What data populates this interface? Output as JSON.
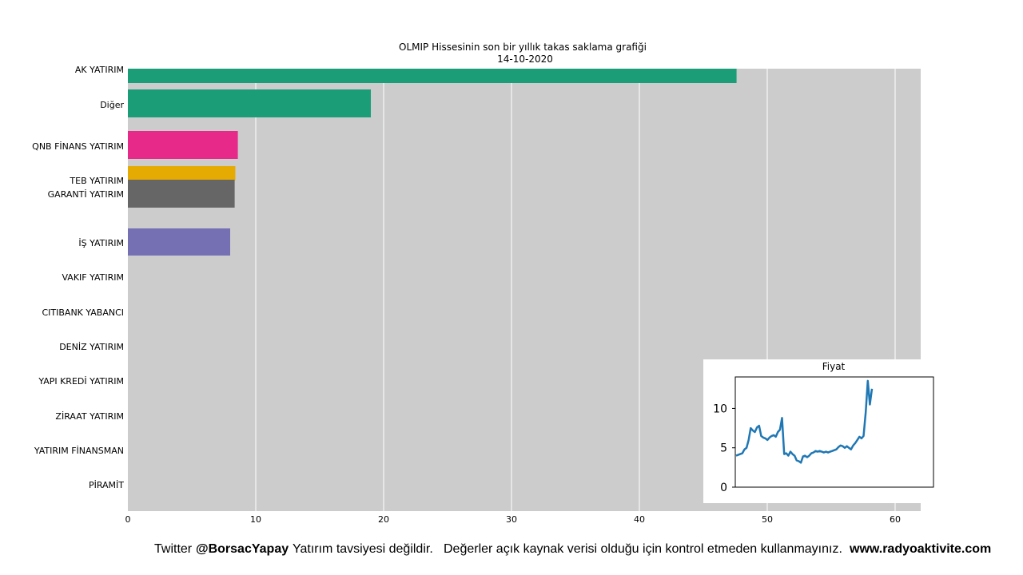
{
  "chart_data": {
    "type": "bar",
    "orientation": "horizontal",
    "title": "OLMIP Hissesinin son bir yıllık takas saklama grafiği",
    "subtitle": "14-10-2020",
    "xlim": [
      0,
      62
    ],
    "xticks": [
      0,
      10,
      20,
      30,
      40,
      50,
      60
    ],
    "grid": true,
    "categories": [
      "AK YATIRIM",
      "Diğer",
      "QNB FİNANS YATIRIM",
      "TEB YATIRIM",
      "GARANTİ YATIRIM",
      "İŞ YATIRIM",
      "VAKIF YATIRIM",
      "CITIBANK YABANCI",
      "DENİZ YATIRIM",
      "YAPI KREDİ YATIRIM",
      "ZİRAAT YATIRIM",
      "YATIRIM FİNANSMAN",
      "PİRAMİT"
    ],
    "values": [
      47.6,
      19.0,
      8.6,
      8.4,
      8.35,
      8.0,
      0,
      0,
      0,
      0,
      0,
      0,
      0
    ],
    "colors": [
      "#1b9e77",
      "#1b9e77",
      "#e7298a",
      "#e6ab02",
      "#666666",
      "#7570b3",
      "#cccccc",
      "#cccccc",
      "#cccccc",
      "#cccccc",
      "#cccccc",
      "#cccccc",
      "#cccccc"
    ],
    "inset": {
      "type": "line",
      "title": "Fiyat",
      "ylim": [
        0,
        14
      ],
      "yticks": [
        0,
        5,
        10
      ],
      "color": "#1f77b4",
      "values": [
        4.0,
        4.1,
        4.2,
        4.3,
        4.8,
        5.0,
        6.0,
        7.5,
        7.2,
        7.0,
        7.6,
        7.8,
        6.5,
        6.3,
        6.2,
        6.0,
        6.3,
        6.5,
        6.6,
        6.4,
        7.0,
        7.3,
        8.8,
        4.2,
        4.3,
        4.0,
        4.5,
        4.2,
        4.0,
        3.4,
        3.3,
        3.1,
        3.9,
        4.0,
        3.8,
        4.0,
        4.3,
        4.4,
        4.6,
        4.5,
        4.6,
        4.5,
        4.4,
        4.5,
        4.4,
        4.5,
        4.6,
        4.7,
        4.8,
        5.1,
        5.3,
        5.2,
        5.0,
        5.2,
        5.0,
        4.8,
        5.3,
        5.6,
        6.0,
        6.4,
        6.2,
        6.5,
        9.5,
        13.5,
        10.5,
        12.5
      ]
    }
  },
  "footer": {
    "twitter_prefix": "Twitter",
    "handle": "@BorsacYapay",
    "disclaimer": "Yatırım tavsiyesi değildir.",
    "warning": "Değerler açık kaynak verisi olduğu için kontrol etmeden kullanmayınız.",
    "website": "www.radyoaktivite.com"
  }
}
